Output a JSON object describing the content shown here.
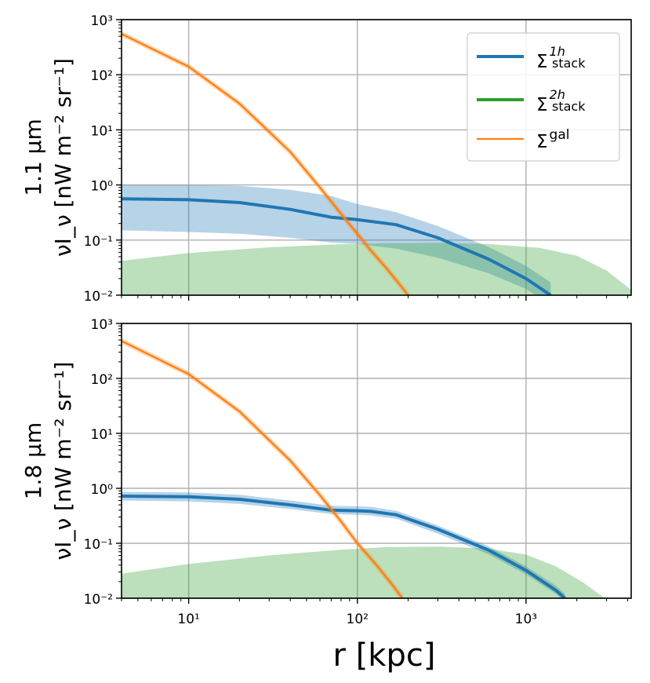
{
  "x_axis_label": "r [kpc]",
  "legend": {
    "entries": [
      {
        "sym": "Σ",
        "sup": "1h",
        "sub": "stack",
        "color": "#1f77b4"
      },
      {
        "sym": "Σ",
        "sup": "2h",
        "sub": "stack",
        "color": "#2ca02c"
      },
      {
        "sym": "Σ",
        "sup": "gal",
        "sub": "",
        "color": "#ff7f0e"
      }
    ]
  },
  "chart_data": [
    {
      "type": "line",
      "title_line1": "1.1 μm",
      "ylabel": "νI_ν [nW m⁻² sr⁻¹]",
      "x_scale": "log",
      "y_scale": "log",
      "xlim": [
        4,
        4200
      ],
      "ylim": [
        0.01,
        1000
      ],
      "x_ticks": [
        {
          "value": 10,
          "label": "10¹"
        },
        {
          "value": 100,
          "label": "10²"
        },
        {
          "value": 1000,
          "label": "10³"
        }
      ],
      "y_ticks": [
        {
          "value": 0.01,
          "label": "10⁻²"
        },
        {
          "value": 0.1,
          "label": "10⁻¹"
        },
        {
          "value": 1,
          "label": "10⁰"
        },
        {
          "value": 10,
          "label": "10¹"
        },
        {
          "value": 100,
          "label": "10²"
        },
        {
          "value": 1000,
          "label": "10³"
        }
      ],
      "show_x_tick_labels": false,
      "grid": true,
      "series": [
        {
          "name": "Σ_stack^1h",
          "color": "#1f77b4",
          "x": [
            4,
            10,
            20,
            40,
            70,
            100,
            170,
            300,
            600,
            1000,
            1400
          ],
          "y": [
            0.56,
            0.54,
            0.48,
            0.36,
            0.26,
            0.235,
            0.19,
            0.11,
            0.045,
            0.02,
            0.01
          ],
          "band_low": [
            0.15,
            0.14,
            0.13,
            0.11,
            0.09,
            0.085,
            0.07,
            0.048,
            0.025,
            0.013,
            0.0066
          ],
          "band_high": [
            1.0,
            1.0,
            0.96,
            0.82,
            0.63,
            0.45,
            0.32,
            0.18,
            0.075,
            0.034,
            0.017
          ]
        },
        {
          "name": "Σ_stack^2h",
          "color": "#2ca02c",
          "x": [
            4,
            10,
            30,
            80,
            150,
            300,
            600,
            1200,
            2000,
            3000,
            4200
          ],
          "band_low": [
            0.01,
            0.01,
            0.01,
            0.01,
            0.01,
            0.01,
            0.01,
            0.01,
            0.01,
            0.01,
            0.01
          ],
          "band_high": [
            0.042,
            0.058,
            0.074,
            0.084,
            0.088,
            0.089,
            0.085,
            0.072,
            0.052,
            0.028,
            0.0125
          ]
        },
        {
          "name": "Σ^gal",
          "color": "#ff7f0e",
          "x": [
            4,
            10,
            20,
            40,
            60,
            80,
            100,
            120,
            150,
            180,
            200
          ],
          "y": [
            550,
            140,
            30,
            4,
            0.9,
            0.3,
            0.13,
            0.065,
            0.03,
            0.015,
            0.01
          ]
        }
      ]
    },
    {
      "type": "line",
      "title_line1": "1.8 μm",
      "ylabel": "νI_ν [nW m⁻² sr⁻¹]",
      "x_scale": "log",
      "y_scale": "log",
      "xlim": [
        4,
        4200
      ],
      "ylim": [
        0.01,
        1000
      ],
      "x_ticks": [
        {
          "value": 10,
          "label": "10¹"
        },
        {
          "value": 100,
          "label": "10²"
        },
        {
          "value": 1000,
          "label": "10³"
        }
      ],
      "y_ticks": [
        {
          "value": 0.01,
          "label": "10⁻²"
        },
        {
          "value": 0.1,
          "label": "10⁻¹"
        },
        {
          "value": 1,
          "label": "10⁰"
        },
        {
          "value": 10,
          "label": "10¹"
        },
        {
          "value": 100,
          "label": "10²"
        },
        {
          "value": 1000,
          "label": "10³"
        }
      ],
      "show_x_tick_labels": true,
      "grid": true,
      "series": [
        {
          "name": "Σ_stack^1h",
          "color": "#1f77b4",
          "x": [
            4,
            10,
            20,
            40,
            70,
            100,
            120,
            170,
            300,
            600,
            1000,
            1500,
            1700
          ],
          "y": [
            0.72,
            0.7,
            0.63,
            0.5,
            0.4,
            0.39,
            0.38,
            0.33,
            0.18,
            0.075,
            0.032,
            0.014,
            0.01
          ],
          "band_low": [
            0.6,
            0.58,
            0.52,
            0.42,
            0.34,
            0.33,
            0.32,
            0.28,
            0.15,
            0.063,
            0.027,
            0.012,
            0.0085
          ],
          "band_high": [
            0.86,
            0.84,
            0.76,
            0.6,
            0.48,
            0.47,
            0.46,
            0.39,
            0.21,
            0.088,
            0.038,
            0.017,
            0.012
          ]
        },
        {
          "name": "Σ_stack^2h",
          "color": "#2ca02c",
          "x": [
            4,
            10,
            30,
            80,
            150,
            300,
            600,
            1000,
            1500,
            2200,
            3000
          ],
          "band_low": [
            0.01,
            0.01,
            0.01,
            0.01,
            0.01,
            0.01,
            0.01,
            0.01,
            0.01,
            0.01,
            0.01
          ],
          "band_high": [
            0.028,
            0.042,
            0.06,
            0.076,
            0.085,
            0.087,
            0.08,
            0.062,
            0.038,
            0.019,
            0.0095
          ]
        },
        {
          "name": "Σ^gal",
          "color": "#ff7f0e",
          "x": [
            4,
            10,
            20,
            40,
            60,
            80,
            100,
            130,
            160,
            185
          ],
          "y": [
            480,
            120,
            25,
            3.2,
            0.75,
            0.25,
            0.1,
            0.04,
            0.018,
            0.01
          ]
        }
      ]
    }
  ]
}
